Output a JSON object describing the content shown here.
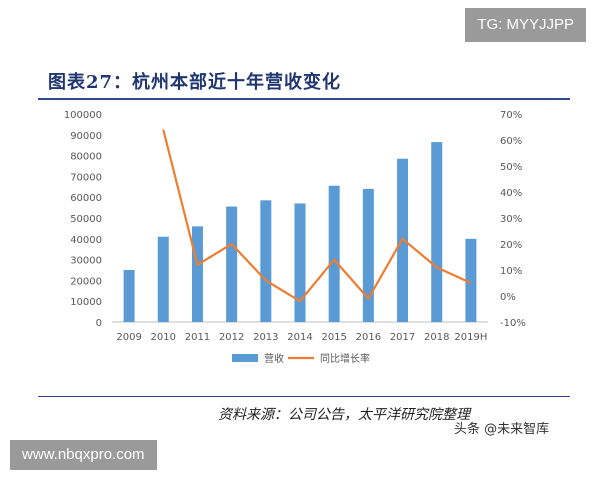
{
  "tg_badge": "TG: MYYJJPP",
  "figure_title": "图表27：杭州本部近十年营收变化",
  "source_text": "资料来源：公司公告，太平洋研究院整理",
  "watermark": "头条 @未来智库",
  "url_badge": "www.nbqxpro.com",
  "colors": {
    "bar": "#5b9bd5",
    "line": "#ed7d31",
    "axis": "#bfbfbf",
    "title": "#1f3670",
    "rule": "#2f4a8a"
  },
  "chart_data": {
    "type": "bar",
    "categories": [
      "2009",
      "2010",
      "2011",
      "2012",
      "2013",
      "2014",
      "2015",
      "2016",
      "2017",
      "2018",
      "2019H"
    ],
    "series": [
      {
        "name": "营收",
        "type": "bar",
        "axis": "left",
        "values": [
          25000,
          41000,
          46000,
          55500,
          58500,
          57000,
          65500,
          64000,
          78500,
          86500,
          40000
        ]
      },
      {
        "name": "同比增长率",
        "type": "line",
        "axis": "right",
        "unit": "%",
        "values": [
          null,
          64,
          12,
          20,
          6,
          -2,
          14,
          -1,
          22,
          11,
          5
        ]
      }
    ],
    "y_left": {
      "lim": [
        0,
        100000
      ],
      "ticks": [
        "0",
        "10000",
        "20000",
        "30000",
        "40000",
        "50000",
        "60000",
        "70000",
        "80000",
        "90000",
        "100000"
      ]
    },
    "y_right": {
      "lim": [
        -10,
        70
      ],
      "ticks": [
        "-10%",
        "0%",
        "10%",
        "20%",
        "30%",
        "40%",
        "50%",
        "60%",
        "70%"
      ]
    },
    "legend_position": "bottom-center",
    "legend": [
      "营收",
      "同比增长率"
    ]
  }
}
